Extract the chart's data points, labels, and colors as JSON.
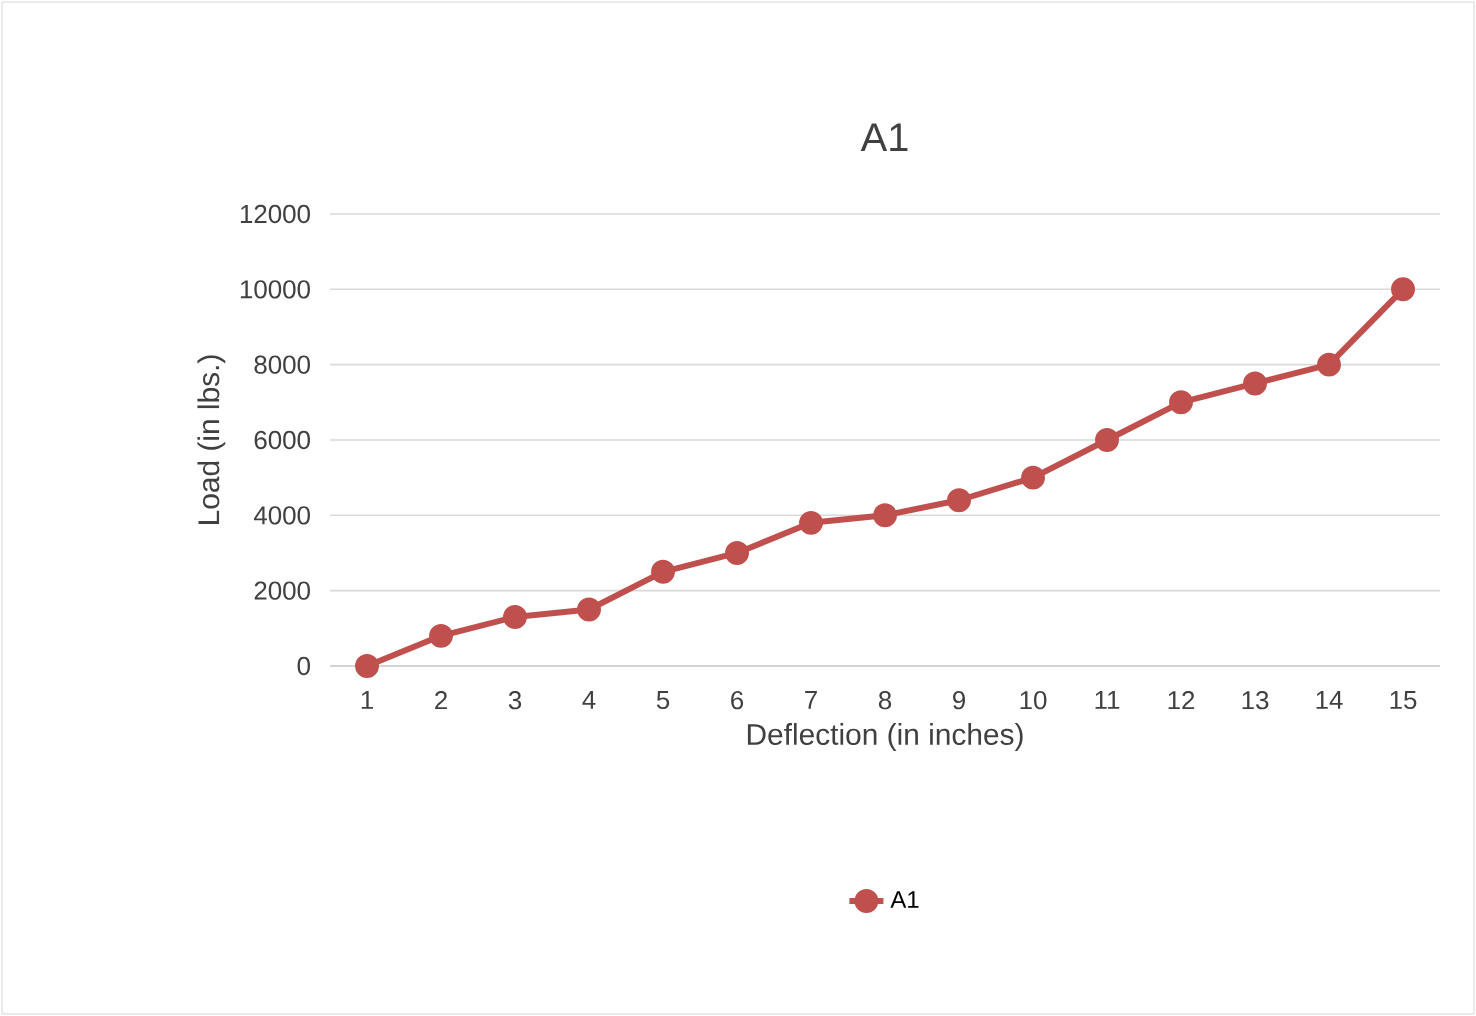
{
  "chart_data": {
    "type": "line",
    "title": "A1",
    "xlabel": "Deflection (in inches)",
    "ylabel": "Load (in lbs.)",
    "categories": [
      "1",
      "2",
      "3",
      "4",
      "5",
      "6",
      "7",
      "8",
      "9",
      "10",
      "11",
      "12",
      "13",
      "14",
      "15"
    ],
    "series": [
      {
        "name": "A1",
        "color": "#c0504d",
        "values": [
          0,
          800,
          1300,
          1500,
          2500,
          3000,
          3800,
          4000,
          4400,
          5000,
          6000,
          7000,
          7500,
          8000,
          10000
        ]
      }
    ],
    "ylim": [
      0,
      12000
    ],
    "yticks": [
      0,
      2000,
      4000,
      6000,
      8000,
      10000,
      12000
    ],
    "grid": "y",
    "legend": "bottom",
    "marker": "circle",
    "line_style": "solid"
  }
}
